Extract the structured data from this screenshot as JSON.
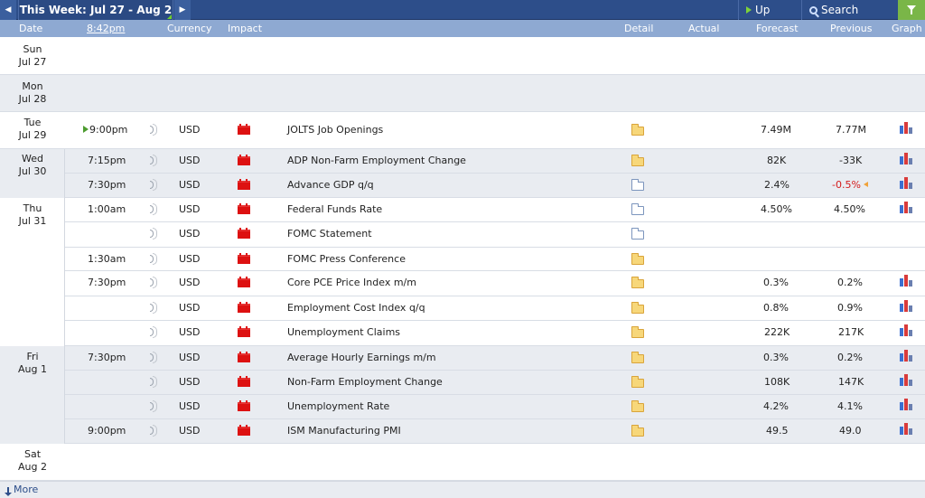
{
  "toolbar": {
    "week_title": "This Week: Jul 27 - Aug 2",
    "up_next": "Up Next",
    "search_events": "Search Events"
  },
  "header": {
    "date": "Date",
    "time": "8:42pm",
    "currency": "Currency",
    "impact": "Impact",
    "detail": "Detail",
    "actual": "Actual",
    "forecast": "Forecast",
    "previous": "Previous",
    "graph": "Graph"
  },
  "days": [
    {
      "dow": "Sun",
      "date": "Jul 27"
    },
    {
      "dow": "Mon",
      "date": "Jul 28"
    },
    {
      "dow": "Tue",
      "date": "Jul 29"
    },
    {
      "dow": "Wed",
      "date": "Jul 30"
    },
    {
      "dow": "Thu",
      "date": "Jul 31"
    },
    {
      "dow": "Fri",
      "date": "Aug 1"
    },
    {
      "dow": "Sat",
      "date": "Aug 2"
    }
  ],
  "events": [
    {
      "time": "9:00pm",
      "currency": "USD",
      "event": "JOLTS Job Openings",
      "forecast": "7.49M",
      "previous": "7.77M"
    },
    {
      "time": "7:15pm",
      "currency": "USD",
      "event": "ADP Non-Farm Employment Change",
      "forecast": "82K",
      "previous": "-33K"
    },
    {
      "time": "7:30pm",
      "currency": "USD",
      "event": "Advance GDP q/q",
      "forecast": "2.4%",
      "previous": "-0.5%"
    },
    {
      "time": "1:00am",
      "currency": "USD",
      "event": "Federal Funds Rate",
      "forecast": "4.50%",
      "previous": "4.50%"
    },
    {
      "time": "",
      "currency": "USD",
      "event": "FOMC Statement",
      "forecast": "",
      "previous": ""
    },
    {
      "time": "1:30am",
      "currency": "USD",
      "event": "FOMC Press Conference",
      "forecast": "",
      "previous": ""
    },
    {
      "time": "7:30pm",
      "currency": "USD",
      "event": "Core PCE Price Index m/m",
      "forecast": "0.3%",
      "previous": "0.2%"
    },
    {
      "time": "",
      "currency": "USD",
      "event": "Employment Cost Index q/q",
      "forecast": "0.8%",
      "previous": "0.9%"
    },
    {
      "time": "",
      "currency": "USD",
      "event": "Unemployment Claims",
      "forecast": "222K",
      "previous": "217K"
    },
    {
      "time": "7:30pm",
      "currency": "USD",
      "event": "Average Hourly Earnings m/m",
      "forecast": "0.3%",
      "previous": "0.2%"
    },
    {
      "time": "",
      "currency": "USD",
      "event": "Non-Farm Employment Change",
      "forecast": "108K",
      "previous": "147K"
    },
    {
      "time": "",
      "currency": "USD",
      "event": "Unemployment Rate",
      "forecast": "4.2%",
      "previous": "4.1%"
    },
    {
      "time": "9:00pm",
      "currency": "USD",
      "event": "ISM Manufacturing PMI",
      "forecast": "49.5",
      "previous": "49.0"
    }
  ],
  "footer": {
    "more": "More"
  }
}
